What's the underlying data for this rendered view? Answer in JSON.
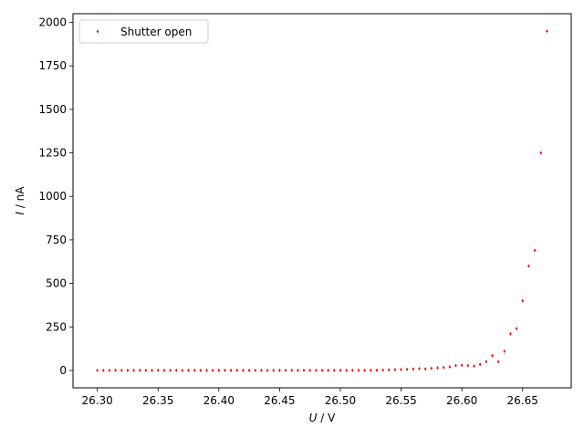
{
  "chart_data": {
    "type": "scatter",
    "xlabel": "U / V",
    "xlabel_var": "U",
    "xlabel_unit": " / V",
    "ylabel": "I / nA",
    "ylabel_var": "I",
    "ylabel_unit": " / nA",
    "xlim": [
      26.28,
      26.69
    ],
    "ylim": [
      -100,
      2050
    ],
    "xticks": [
      26.3,
      26.35,
      26.4,
      26.45,
      26.5,
      26.55,
      26.6,
      26.65
    ],
    "xtick_labels": [
      "26.30",
      "26.35",
      "26.40",
      "26.45",
      "26.50",
      "26.55",
      "26.60",
      "26.65"
    ],
    "yticks": [
      0,
      250,
      500,
      750,
      1000,
      1250,
      1500,
      1750,
      2000
    ],
    "ytick_labels": [
      "0",
      "250",
      "500",
      "750",
      "1000",
      "1250",
      "1500",
      "1750",
      "2000"
    ],
    "grid": false,
    "legend": {
      "position": "top-left",
      "label": "Shutter open"
    },
    "series": [
      {
        "name": "Shutter open",
        "color": "#ff0000",
        "marker": "diamond",
        "points": [
          [
            26.3,
            0
          ],
          [
            26.305,
            0
          ],
          [
            26.31,
            0
          ],
          [
            26.315,
            0
          ],
          [
            26.32,
            0
          ],
          [
            26.325,
            0
          ],
          [
            26.33,
            0
          ],
          [
            26.335,
            0
          ],
          [
            26.34,
            0
          ],
          [
            26.345,
            0
          ],
          [
            26.35,
            0
          ],
          [
            26.355,
            0
          ],
          [
            26.36,
            0
          ],
          [
            26.365,
            0
          ],
          [
            26.37,
            0
          ],
          [
            26.375,
            0
          ],
          [
            26.38,
            0
          ],
          [
            26.385,
            0
          ],
          [
            26.39,
            0
          ],
          [
            26.395,
            0
          ],
          [
            26.4,
            0
          ],
          [
            26.405,
            0
          ],
          [
            26.41,
            0
          ],
          [
            26.415,
            0
          ],
          [
            26.42,
            0
          ],
          [
            26.425,
            0
          ],
          [
            26.43,
            0
          ],
          [
            26.435,
            0
          ],
          [
            26.44,
            0
          ],
          [
            26.445,
            0
          ],
          [
            26.45,
            0
          ],
          [
            26.455,
            0
          ],
          [
            26.46,
            0
          ],
          [
            26.465,
            0
          ],
          [
            26.47,
            0
          ],
          [
            26.475,
            0
          ],
          [
            26.48,
            0
          ],
          [
            26.485,
            0
          ],
          [
            26.49,
            0
          ],
          [
            26.495,
            0
          ],
          [
            26.5,
            0
          ],
          [
            26.505,
            0
          ],
          [
            26.51,
            0
          ],
          [
            26.515,
            0
          ],
          [
            26.52,
            0
          ],
          [
            26.525,
            1
          ],
          [
            26.53,
            1
          ],
          [
            26.535,
            2
          ],
          [
            26.54,
            3
          ],
          [
            26.545,
            4
          ],
          [
            26.55,
            5
          ],
          [
            26.555,
            6
          ],
          [
            26.56,
            8
          ],
          [
            26.565,
            10
          ],
          [
            26.57,
            8
          ],
          [
            26.575,
            12
          ],
          [
            26.58,
            15
          ],
          [
            26.585,
            17
          ],
          [
            26.59,
            20
          ],
          [
            26.595,
            28
          ],
          [
            26.6,
            30
          ],
          [
            26.605,
            28
          ],
          [
            26.61,
            25
          ],
          [
            26.615,
            35
          ],
          [
            26.62,
            50
          ],
          [
            26.625,
            85
          ],
          [
            26.63,
            50
          ],
          [
            26.635,
            110
          ],
          [
            26.64,
            210
          ],
          [
            26.645,
            240
          ],
          [
            26.65,
            400
          ],
          [
            26.655,
            600
          ],
          [
            26.66,
            690
          ],
          [
            26.665,
            1250
          ],
          [
            26.67,
            1950
          ]
        ]
      }
    ]
  }
}
